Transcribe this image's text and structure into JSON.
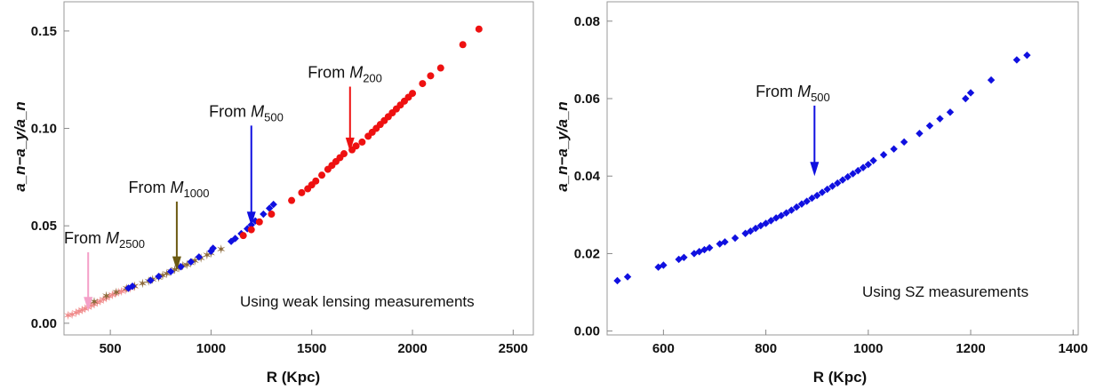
{
  "chart_data": [
    {
      "type": "scatter",
      "xlabel": "R (Kpc)",
      "ylabel": "a_n−a_y/a_n",
      "xlim": [
        270,
        2600
      ],
      "ylim": [
        -0.006,
        0.165
      ],
      "xticks": [
        500,
        1000,
        1500,
        2000,
        2500
      ],
      "yticks": [
        0.0,
        0.05,
        0.1,
        0.15
      ],
      "ytick_labels": [
        "0.00",
        "0.05",
        "0.10",
        "0.15"
      ],
      "note": "Using weak lensing measurements",
      "series": [
        {
          "marker": "star",
          "color": "#f08a8a",
          "x": [
            290,
            310,
            330,
            345,
            360,
            375,
            390,
            405,
            420,
            435,
            450,
            465,
            480,
            495,
            510,
            525,
            540,
            555,
            575,
            600,
            620
          ],
          "y": [
            0.004,
            0.0045,
            0.0055,
            0.006,
            0.0068,
            0.0075,
            0.0082,
            0.009,
            0.0098,
            0.0106,
            0.0114,
            0.0122,
            0.013,
            0.0138,
            0.0146,
            0.0152,
            0.0158,
            0.0163,
            0.017,
            0.018,
            0.0188
          ]
        },
        {
          "marker": "star",
          "color": "#8c6a3a",
          "x": [
            420,
            480,
            530,
            580,
            620,
            660,
            690,
            710,
            740,
            760,
            780,
            800,
            820,
            840,
            860,
            880,
            900,
            920,
            950,
            980,
            1000,
            1050
          ],
          "y": [
            0.011,
            0.014,
            0.016,
            0.018,
            0.019,
            0.0205,
            0.0215,
            0.0225,
            0.0235,
            0.0245,
            0.0255,
            0.0265,
            0.0275,
            0.0285,
            0.0295,
            0.03,
            0.031,
            0.032,
            0.0335,
            0.035,
            0.036,
            0.038
          ]
        },
        {
          "marker": "diamond",
          "color": "#1010e0",
          "x": [
            590,
            610,
            700,
            740,
            800,
            850,
            900,
            940,
            1000,
            1010,
            1100,
            1120,
            1150,
            1180,
            1200,
            1220,
            1260,
            1290,
            1310
          ],
          "y": [
            0.018,
            0.019,
            0.022,
            0.024,
            0.0265,
            0.029,
            0.0315,
            0.034,
            0.037,
            0.0385,
            0.042,
            0.0435,
            0.046,
            0.0485,
            0.0505,
            0.0525,
            0.056,
            0.059,
            0.061
          ]
        },
        {
          "marker": "circle",
          "color": "#ee1111",
          "x": [
            1160,
            1200,
            1240,
            1300,
            1400,
            1450,
            1480,
            1500,
            1520,
            1550,
            1580,
            1600,
            1620,
            1640,
            1660,
            1700,
            1720,
            1750,
            1780,
            1800,
            1820,
            1840,
            1860,
            1880,
            1900,
            1920,
            1940,
            1960,
            1980,
            2000,
            2050,
            2090,
            2140,
            2250,
            2330
          ],
          "y": [
            0.045,
            0.048,
            0.052,
            0.056,
            0.063,
            0.067,
            0.069,
            0.071,
            0.073,
            0.076,
            0.079,
            0.081,
            0.083,
            0.085,
            0.087,
            0.089,
            0.091,
            0.093,
            0.096,
            0.098,
            0.1,
            0.102,
            0.104,
            0.106,
            0.108,
            0.11,
            0.112,
            0.114,
            0.116,
            0.118,
            0.123,
            0.127,
            0.131,
            0.143,
            0.151
          ]
        }
      ],
      "annotations": [
        {
          "text": "From ",
          "sub": "2500",
          "x": 390,
          "y": 0.0062,
          "color": "#f4a0c8",
          "label_anchor": [
            270,
            0.041
          ]
        },
        {
          "text": "From ",
          "sub": "1000",
          "x": 830,
          "y": 0.027,
          "color": "#6b5a12",
          "label_anchor": [
            590,
            0.067
          ]
        },
        {
          "text": "From ",
          "sub": "500",
          "x": 1200,
          "y": 0.05,
          "color": "#1010e0",
          "label_anchor": [
            990,
            0.106
          ]
        },
        {
          "text": "From ",
          "sub": "200",
          "x": 1690,
          "y": 0.088,
          "color": "#ee1111",
          "label_anchor": [
            1480,
            0.126
          ]
        }
      ]
    },
    {
      "type": "scatter",
      "xlabel": "R (Kpc)",
      "ylabel": "a_n−a_y/a_n",
      "xlim": [
        490,
        1410
      ],
      "ylim": [
        -0.001,
        0.085
      ],
      "xticks": [
        600,
        800,
        1000,
        1200,
        1400
      ],
      "yticks": [
        0.0,
        0.02,
        0.04,
        0.06,
        0.08
      ],
      "ytick_labels": [
        "0.00",
        "0.02",
        "0.04",
        "0.06",
        "0.08"
      ],
      "note": "Using SZ measurements",
      "series": [
        {
          "marker": "diamond",
          "color": "#1010e0",
          "x": [
            510,
            530,
            590,
            600,
            630,
            640,
            660,
            670,
            680,
            690,
            710,
            720,
            740,
            760,
            770,
            780,
            790,
            800,
            810,
            820,
            830,
            840,
            850,
            860,
            870,
            880,
            890,
            900,
            910,
            920,
            930,
            940,
            950,
            960,
            970,
            980,
            990,
            1000,
            1010,
            1030,
            1050,
            1070,
            1100,
            1120,
            1140,
            1160,
            1190,
            1200,
            1240,
            1290,
            1310
          ],
          "y": [
            0.013,
            0.014,
            0.0165,
            0.017,
            0.0185,
            0.019,
            0.02,
            0.0205,
            0.021,
            0.0215,
            0.0225,
            0.023,
            0.024,
            0.0252,
            0.0258,
            0.0265,
            0.0272,
            0.0278,
            0.0285,
            0.0292,
            0.0298,
            0.0305,
            0.0312,
            0.032,
            0.0328,
            0.0335,
            0.0343,
            0.035,
            0.0358,
            0.0366,
            0.0374,
            0.0382,
            0.039,
            0.0398,
            0.0406,
            0.0414,
            0.0422,
            0.043,
            0.044,
            0.0455,
            0.047,
            0.0488,
            0.051,
            0.053,
            0.0548,
            0.0565,
            0.06,
            0.0615,
            0.0648,
            0.07,
            0.0712
          ]
        }
      ],
      "annotations": [
        {
          "text": "From ",
          "sub": "500",
          "x": 895,
          "y": 0.04,
          "color": "#1010e0",
          "label_anchor": [
            780,
            0.0605
          ]
        }
      ]
    }
  ]
}
